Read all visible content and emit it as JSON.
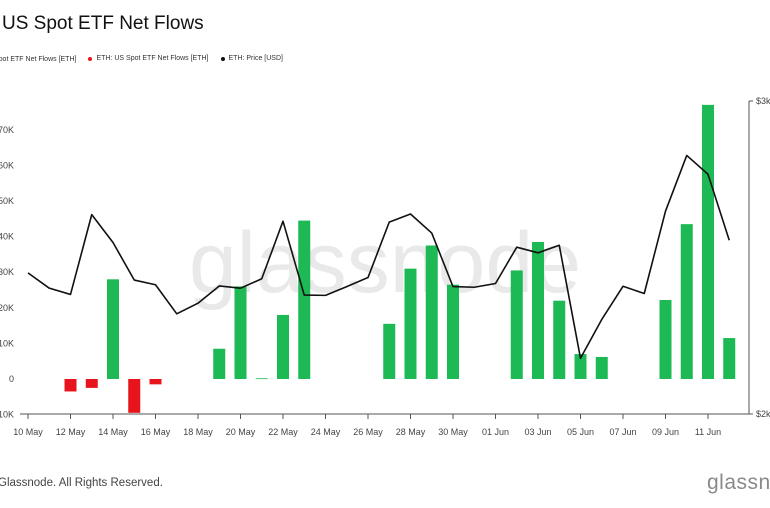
{
  "title": "US Spot ETF Net Flows",
  "legend": [
    {
      "label": "Spot ETF Net Flows [ETH]",
      "color": "#1db954"
    },
    {
      "label": "ETH: US Spot ETF Net Flows [ETH]",
      "color": "#e8141c"
    },
    {
      "label": "ETH: Price [USD]",
      "color": "#111111"
    }
  ],
  "footer": "Glassnode. All Rights Reserved.",
  "brand": "glassnode",
  "watermark": "glassnode",
  "colors": {
    "positive": "#1db954",
    "negative": "#e8141c",
    "price": "#111111",
    "axis": "#444444"
  },
  "chart_data": {
    "type": "bar",
    "x": [
      "10 May",
      "11 May",
      "12 May",
      "13 May",
      "14 May",
      "15 May",
      "16 May",
      "17 May",
      "18 May",
      "19 May",
      "20 May",
      "21 May",
      "22 May",
      "23 May",
      "24 May",
      "25 May",
      "26 May",
      "27 May",
      "28 May",
      "29 May",
      "30 May",
      "31 May",
      "01 Jun",
      "02 Jun",
      "03 Jun",
      "04 Jun",
      "05 Jun",
      "06 Jun",
      "07 Jun",
      "08 Jun",
      "09 Jun",
      "10 Jun",
      "11 Jun",
      "12 Jun"
    ],
    "x_tick_labels": [
      "10 May",
      "12 May",
      "14 May",
      "16 May",
      "18 May",
      "20 May",
      "22 May",
      "24 May",
      "26 May",
      "28 May",
      "30 May",
      "01 Jun",
      "03 Jun",
      "05 Jun",
      "07 Jun",
      "09 Jun",
      "11 Jun"
    ],
    "series": [
      {
        "name": "ETH: US Spot ETF Net Flows [ETH]",
        "axis": "left",
        "values": [
          0,
          0,
          -3500,
          -2500,
          28000,
          -9500,
          -1500,
          0,
          0,
          8500,
          26000,
          200,
          18000,
          44500,
          0,
          0,
          0,
          15500,
          31000,
          37500,
          26500,
          0,
          0,
          30500,
          38500,
          22000,
          7000,
          6200,
          0,
          0,
          22200,
          43500,
          77000,
          11500
        ]
      },
      {
        "name": "ETH: Price [USD]",
        "axis": "right",
        "values": [
          2451,
          2402,
          2382,
          2637,
          2548,
          2428,
          2413,
          2320,
          2354,
          2409,
          2402,
          2432,
          2616,
          2380,
          2379,
          2407,
          2436,
          2613,
          2639,
          2578,
          2407,
          2405,
          2417,
          2533,
          2515,
          2539,
          2178,
          2302,
          2408,
          2385,
          2648,
          2826,
          2766,
          2555
        ]
      }
    ],
    "y_left": {
      "ticks": [
        -10000,
        0,
        10000,
        20000,
        30000,
        40000,
        50000,
        60000,
        70000
      ],
      "tick_labels": [
        "-10K",
        "0",
        "10K",
        "20K",
        "30K",
        "40K",
        "50K",
        "60K",
        "70K"
      ]
    },
    "y_right": {
      "ticks": [
        2000,
        3000
      ],
      "tick_labels": [
        "$2k",
        "$3k"
      ]
    },
    "grid": false,
    "legend_position": "top-left"
  }
}
